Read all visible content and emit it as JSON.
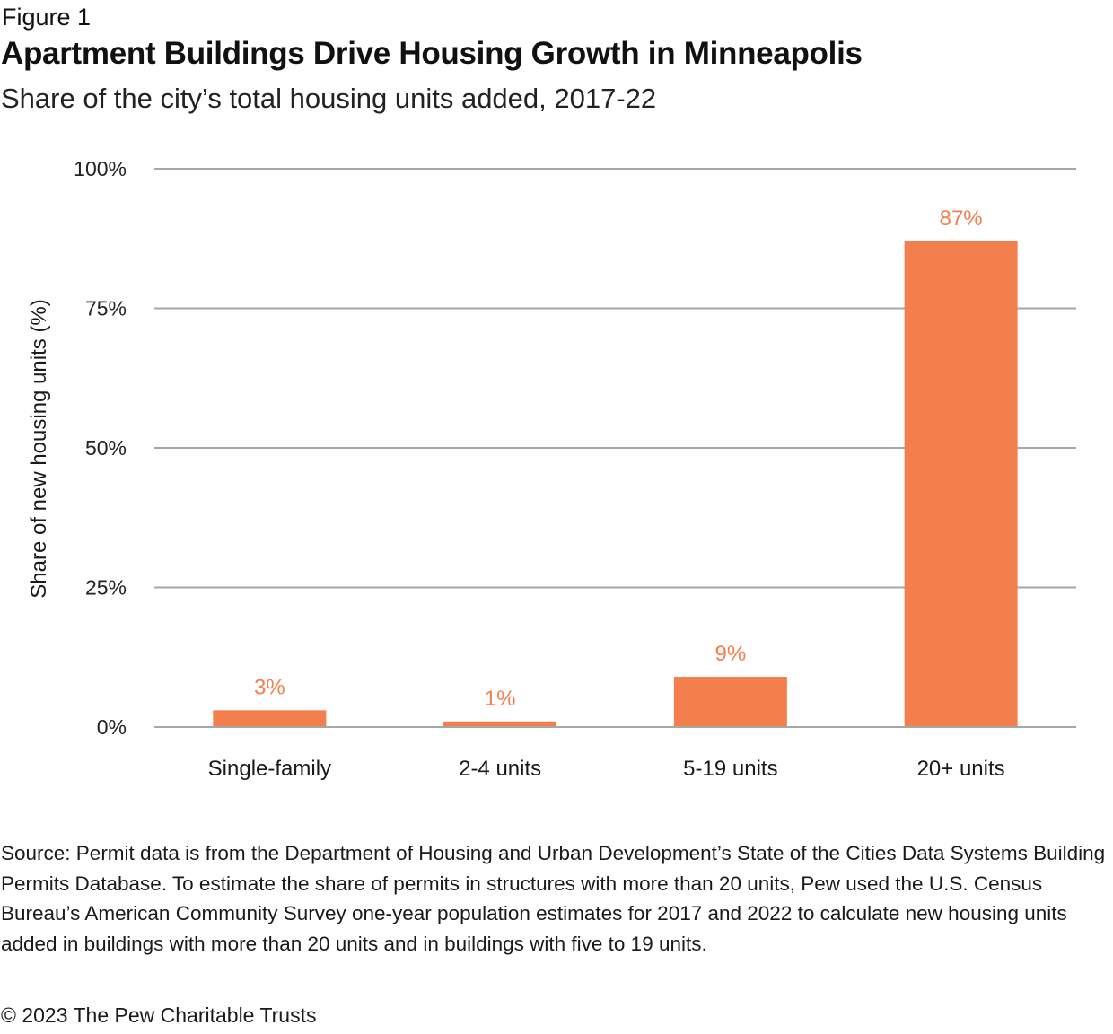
{
  "header": {
    "figure_label": "Figure 1",
    "title": "Apartment Buildings Drive Housing Growth in Minneapolis",
    "subtitle": "Share of the city’s total housing units added, 2017-22"
  },
  "chart_data": {
    "type": "bar",
    "title": "Apartment Buildings Drive Housing Growth in Minneapolis",
    "subtitle": "Share of the city’s total housing units added, 2017-22",
    "categories": [
      "Single-family",
      "2-4 units",
      "5-19 units",
      "20+ units"
    ],
    "values": [
      3,
      1,
      9,
      87
    ],
    "data_labels": [
      "3%",
      "1%",
      "9%",
      "87%"
    ],
    "xlabel": "",
    "ylabel": "Share of new housing units (%)",
    "ylim": [
      0,
      100
    ],
    "yticks": [
      0,
      25,
      50,
      75,
      100
    ],
    "ytick_labels": [
      "0%",
      "25%",
      "50%",
      "75%",
      "100%"
    ],
    "grid": true,
    "legend": "none",
    "colors": {
      "bar": "#f47f4c",
      "label": "#f47f4c",
      "grid": "#a6a6a6"
    }
  },
  "footer": {
    "source": "Source: Permit data is from the Department of Housing and Urban Development’s State of the Cities Data Systems Building Permits Database. To estimate the share of permits in structures with more than 20 units, Pew used the U.S. Census Bureau’s American Community Survey one-year population estimates for 2017 and 2022 to calculate new housing units added in buildings with more than 20 units and in buildings with five to 19 units.",
    "copyright": "© 2023 The Pew Charitable Trusts"
  }
}
